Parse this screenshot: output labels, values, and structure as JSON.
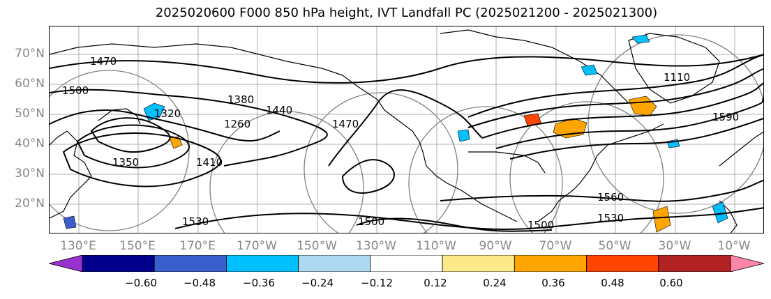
{
  "title": "2025020600 F000 850 hPa height, IVT Landfall PC (2025021200 - 2025021300)",
  "lat_labels": [
    "70°N",
    "60°N",
    "50°N",
    "40°N",
    "30°N",
    "20°N"
  ],
  "lon_labels": [
    "130°E",
    "150°E",
    "170°E",
    "170°W",
    "150°W",
    "130°W",
    "110°W",
    "90°W",
    "70°W",
    "50°W",
    "30°W",
    "10°W"
  ],
  "contour_labels": [
    "1470",
    "1500",
    "1380",
    "1320",
    "1350",
    "1410",
    "1260",
    "1440",
    "1470",
    "1530",
    "1500",
    "1110",
    "1590",
    "1560",
    "1530",
    "1500"
  ],
  "colorbar": {
    "ticks": [
      "−0.60",
      "−0.48",
      "−0.36",
      "−0.24",
      "−0.12",
      "0.12",
      "0.24",
      "0.36",
      "0.48",
      "0.60"
    ],
    "colors": [
      "#9932cc",
      "#00008b",
      "#3a5fcd",
      "#00bfff",
      "#add8f0",
      "#ffffff",
      "#fce98a",
      "#ffa500",
      "#ff4500",
      "#b22222",
      "#ff85a8"
    ]
  }
}
